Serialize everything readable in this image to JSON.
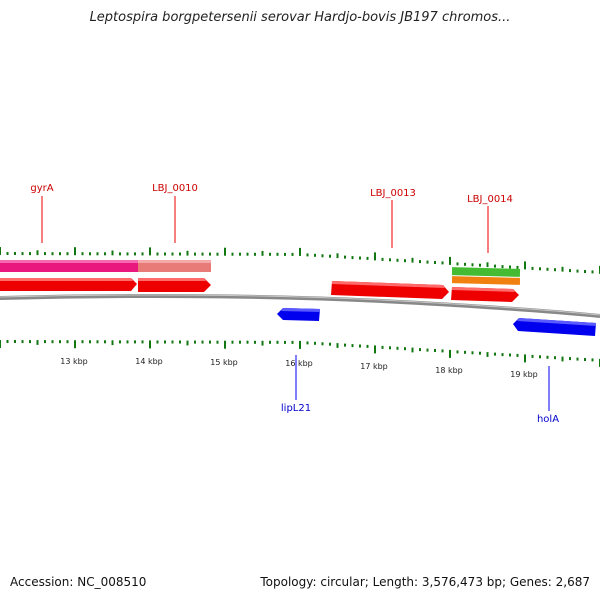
{
  "title": "Leptospira borgpetersenii serovar Hardjo-bovis JB197 chromos...",
  "footer": {
    "accession": "Accession: NC_008510",
    "summary": "Topology: circular; Length: 3,576,473 bp; Genes: 2,687"
  },
  "colors": {
    "forward_gene": "#ee0000",
    "reverse_gene": "#0000ee",
    "gyrA_track": "#e8187e",
    "lbj0010_track": "#e87a78",
    "lbj0014_green": "#44bb33",
    "lbj0014_orange": "#f08010",
    "tick": "#117711",
    "backbone": "#888888"
  },
  "scale": {
    "tick_labels": [
      "13 kbp",
      "14 kbp",
      "15 kbp",
      "16 kbp",
      "17 kbp",
      "18 kbp",
      "19 kbp"
    ]
  },
  "genes": {
    "forward_labels": [
      "gyrA",
      "LBJ_0010",
      "LBJ_0013",
      "LBJ_0014"
    ],
    "reverse_labels": [
      "lipL21",
      "holA"
    ]
  }
}
